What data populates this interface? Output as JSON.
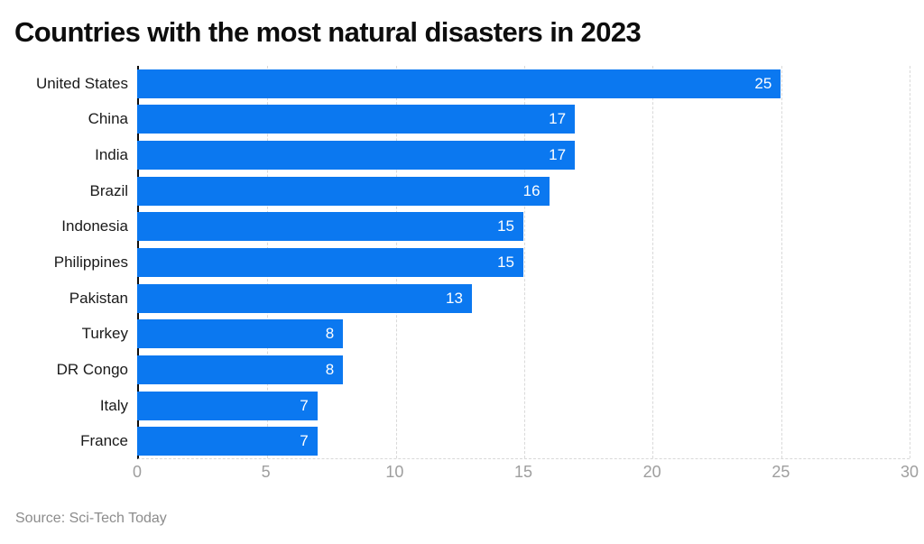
{
  "source_label": "Source: Sci-Tech Today",
  "chart_data": {
    "type": "bar",
    "orientation": "horizontal",
    "title": "Countries with the most natural disasters in 2023",
    "categories": [
      "United States",
      "China",
      "India",
      "Brazil",
      "Indonesia",
      "Philippines",
      "Pakistan",
      "Turkey",
      "DR Congo",
      "Italy",
      "France"
    ],
    "values": [
      25,
      17,
      17,
      16,
      15,
      15,
      13,
      8,
      8,
      7,
      7
    ],
    "xlabel": "",
    "ylabel": "",
    "xlim": [
      0,
      30
    ],
    "xticks": [
      0,
      5,
      10,
      15,
      20,
      25,
      30
    ],
    "grid": "vertical dashed gridlines at each x tick, dashed baseline at bottom",
    "legend": "none",
    "bar_color": "#0b78f0",
    "value_label_color": "#ffffff",
    "axis_line_color": "#0d0d0d",
    "tick_label_color": "#9e9e9e",
    "category_label_color": "#1a1a1a"
  }
}
